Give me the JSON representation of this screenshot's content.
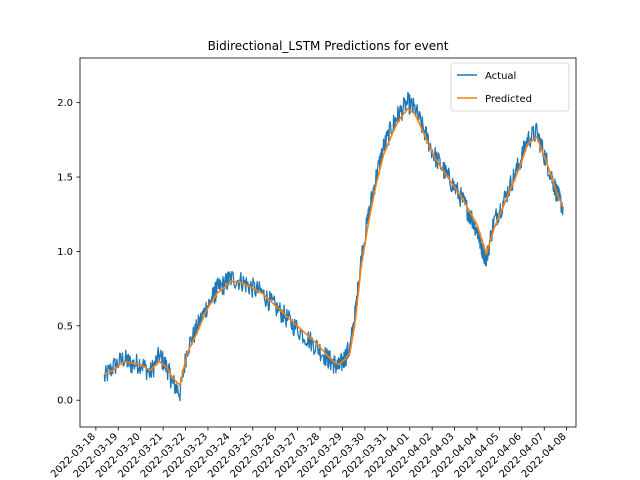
{
  "chart_data": {
    "type": "line",
    "title": "Bidirectional_LSTM Predictions for event",
    "xlabel": "",
    "ylabel": "",
    "x_tick_labels": [
      "2022-03-18",
      "2022-03-19",
      "2022-03-20",
      "2022-03-21",
      "2022-03-22",
      "2022-03-23",
      "2022-03-24",
      "2022-03-25",
      "2022-03-26",
      "2022-03-27",
      "2022-03-28",
      "2022-03-29",
      "2022-03-30",
      "2022-03-31",
      "2022-04-01",
      "2022-04-02",
      "2022-04-03",
      "2022-04-04",
      "2022-04-05",
      "2022-04-06",
      "2022-04-07",
      "2022-04-08"
    ],
    "x_tick_rotation_deg": 45,
    "y_ticks": [
      0.0,
      0.5,
      1.0,
      1.5,
      2.0
    ],
    "y_tick_labels": [
      "0.0",
      "0.5",
      "1.0",
      "1.5",
      "2.0"
    ],
    "xlim": [
      "2022-03-17T07:00",
      "2022-04-08T10:00"
    ],
    "ylim": [
      -0.18,
      2.3
    ],
    "grid": false,
    "legend_position": "upper right",
    "series": [
      {
        "name": "Actual",
        "color": "#1f77b4",
        "style": "noisy",
        "x": [
          "2022-03-18T09:00",
          "2022-03-18T18:00",
          "2022-03-19T06:00",
          "2022-03-19T14:00",
          "2022-03-20T00:00",
          "2022-03-20T10:00",
          "2022-03-20T20:00",
          "2022-03-21T04:00",
          "2022-03-21T10:00",
          "2022-03-21T18:00",
          "2022-03-22T02:00",
          "2022-03-22T12:00",
          "2022-03-22T22:00",
          "2022-03-23T06:00",
          "2022-03-23T10:00",
          "2022-03-23T18:00",
          "2022-03-24T00:00",
          "2022-03-24T12:00",
          "2022-03-24T22:00",
          "2022-03-25T10:00",
          "2022-03-25T20:00",
          "2022-03-26T08:00",
          "2022-03-26T20:00",
          "2022-03-27T10:00",
          "2022-03-27T22:00",
          "2022-03-28T08:00",
          "2022-03-28T14:00",
          "2022-03-28T20:00",
          "2022-03-29T02:00",
          "2022-03-29T08:00",
          "2022-03-29T14:00",
          "2022-03-29T20:00",
          "2022-03-30T04:00",
          "2022-03-30T12:00",
          "2022-03-30T20:00",
          "2022-03-31T06:00",
          "2022-03-31T12:00",
          "2022-03-31T22:00",
          "2022-04-01T06:00",
          "2022-04-01T16:00",
          "2022-04-02T02:00",
          "2022-04-02T12:00",
          "2022-04-02T22:00",
          "2022-04-03T08:00",
          "2022-04-03T16:00",
          "2022-04-04T00:00",
          "2022-04-04T04:00",
          "2022-04-04T10:00",
          "2022-04-04T18:00",
          "2022-04-05T02:00",
          "2022-04-05T12:00",
          "2022-04-05T22:00",
          "2022-04-06T06:00",
          "2022-04-06T16:00",
          "2022-04-07T00:00",
          "2022-04-07T08:00",
          "2022-04-07T14:00",
          "2022-04-07T20:00"
        ],
        "values": [
          0.15,
          0.22,
          0.28,
          0.24,
          0.25,
          0.18,
          0.3,
          0.22,
          0.12,
          0.05,
          0.35,
          0.48,
          0.62,
          0.7,
          0.75,
          0.78,
          0.82,
          0.8,
          0.76,
          0.72,
          0.65,
          0.58,
          0.5,
          0.42,
          0.35,
          0.28,
          0.25,
          0.22,
          0.28,
          0.35,
          0.6,
          0.95,
          1.25,
          1.5,
          1.7,
          1.85,
          1.92,
          2.0,
          1.95,
          1.8,
          1.65,
          1.55,
          1.45,
          1.35,
          1.25,
          1.15,
          1.05,
          0.95,
          1.2,
          1.3,
          1.45,
          1.6,
          1.75,
          1.8,
          1.65,
          1.5,
          1.38,
          1.3
        ]
      },
      {
        "name": "Predicted",
        "color": "#ff7f0e",
        "style": "smooth",
        "x": [
          "2022-03-18T09:00",
          "2022-03-18T18:00",
          "2022-03-19T06:00",
          "2022-03-19T14:00",
          "2022-03-20T00:00",
          "2022-03-20T10:00",
          "2022-03-20T20:00",
          "2022-03-21T04:00",
          "2022-03-21T10:00",
          "2022-03-21T18:00",
          "2022-03-22T02:00",
          "2022-03-22T12:00",
          "2022-03-22T22:00",
          "2022-03-23T06:00",
          "2022-03-23T10:00",
          "2022-03-23T18:00",
          "2022-03-24T00:00",
          "2022-03-24T12:00",
          "2022-03-24T22:00",
          "2022-03-25T10:00",
          "2022-03-25T20:00",
          "2022-03-26T08:00",
          "2022-03-26T20:00",
          "2022-03-27T10:00",
          "2022-03-27T22:00",
          "2022-03-28T08:00",
          "2022-03-28T14:00",
          "2022-03-28T20:00",
          "2022-03-29T02:00",
          "2022-03-29T08:00",
          "2022-03-29T14:00",
          "2022-03-29T20:00",
          "2022-03-30T04:00",
          "2022-03-30T12:00",
          "2022-03-30T20:00",
          "2022-03-31T06:00",
          "2022-03-31T12:00",
          "2022-03-31T22:00",
          "2022-04-01T06:00",
          "2022-04-01T16:00",
          "2022-04-02T02:00",
          "2022-04-02T12:00",
          "2022-04-02T22:00",
          "2022-04-03T08:00",
          "2022-04-03T16:00",
          "2022-04-04T00:00",
          "2022-04-04T04:00",
          "2022-04-04T10:00",
          "2022-04-04T18:00",
          "2022-04-05T02:00",
          "2022-04-05T12:00",
          "2022-04-05T22:00",
          "2022-04-06T06:00",
          "2022-04-06T16:00",
          "2022-04-07T00:00",
          "2022-04-07T08:00",
          "2022-04-07T14:00",
          "2022-04-07T20:00"
        ],
        "values": [
          0.18,
          0.2,
          0.26,
          0.25,
          0.24,
          0.2,
          0.26,
          0.22,
          0.15,
          0.1,
          0.32,
          0.45,
          0.6,
          0.68,
          0.72,
          0.76,
          0.8,
          0.79,
          0.76,
          0.72,
          0.66,
          0.59,
          0.52,
          0.44,
          0.37,
          0.3,
          0.26,
          0.24,
          0.27,
          0.32,
          0.55,
          0.9,
          1.2,
          1.45,
          1.65,
          1.8,
          1.88,
          1.96,
          1.92,
          1.78,
          1.64,
          1.54,
          1.45,
          1.36,
          1.27,
          1.18,
          1.1,
          0.98,
          1.15,
          1.27,
          1.42,
          1.57,
          1.72,
          1.77,
          1.64,
          1.5,
          1.38,
          1.3
        ]
      }
    ]
  }
}
